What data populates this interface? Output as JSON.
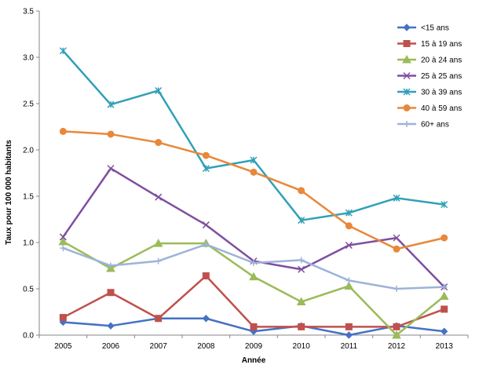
{
  "chart_data": {
    "type": "line",
    "title": "",
    "xlabel": "Année",
    "ylabel": "Taux pour 100 000 habitants",
    "x": [
      "2005",
      "2006",
      "2007",
      "2008",
      "2009",
      "2010",
      "2011",
      "2012",
      "2013"
    ],
    "ylim": [
      0,
      3.5
    ],
    "y_ticks": [
      "0.0",
      "0.5",
      "1.0",
      "1.5",
      "2.0",
      "2.5",
      "3.0",
      "3.5"
    ],
    "grid": false,
    "legend_position": "top-right",
    "series": [
      {
        "name": "<15 ans",
        "color": "#4472C4",
        "marker": "diamond",
        "values": [
          0.14,
          0.1,
          0.18,
          0.18,
          0.04,
          0.1,
          0.0,
          0.1,
          0.04
        ]
      },
      {
        "name": "15 à 19 ans",
        "color": "#C0504D",
        "marker": "square",
        "values": [
          0.19,
          0.46,
          0.18,
          0.64,
          0.09,
          0.09,
          0.09,
          0.09,
          0.28
        ]
      },
      {
        "name": "20 à 24 ans",
        "color": "#9BBB59",
        "marker": "triangle",
        "values": [
          1.01,
          0.72,
          0.99,
          0.99,
          0.63,
          0.36,
          0.53,
          0.0,
          0.42
        ]
      },
      {
        "name": "25 à 25 ans",
        "color": "#7F4F9F",
        "marker": "x",
        "values": [
          1.06,
          1.8,
          1.49,
          1.19,
          0.8,
          0.71,
          0.97,
          1.05,
          0.52
        ]
      },
      {
        "name": "30 à 39 ans",
        "color": "#31A0B8",
        "marker": "star",
        "values": [
          3.07,
          2.49,
          2.64,
          1.8,
          1.89,
          1.24,
          1.32,
          1.48,
          1.41
        ]
      },
      {
        "name": "40 à 59 ans",
        "color": "#E8883A",
        "marker": "circle",
        "values": [
          2.2,
          2.17,
          2.08,
          1.94,
          1.76,
          1.56,
          1.18,
          0.93,
          1.05
        ]
      },
      {
        "name": "60+ ans",
        "color": "#9DB3D9",
        "marker": "plus",
        "values": [
          0.94,
          0.75,
          0.8,
          0.98,
          0.78,
          0.81,
          0.59,
          0.5,
          0.52
        ]
      }
    ]
  }
}
